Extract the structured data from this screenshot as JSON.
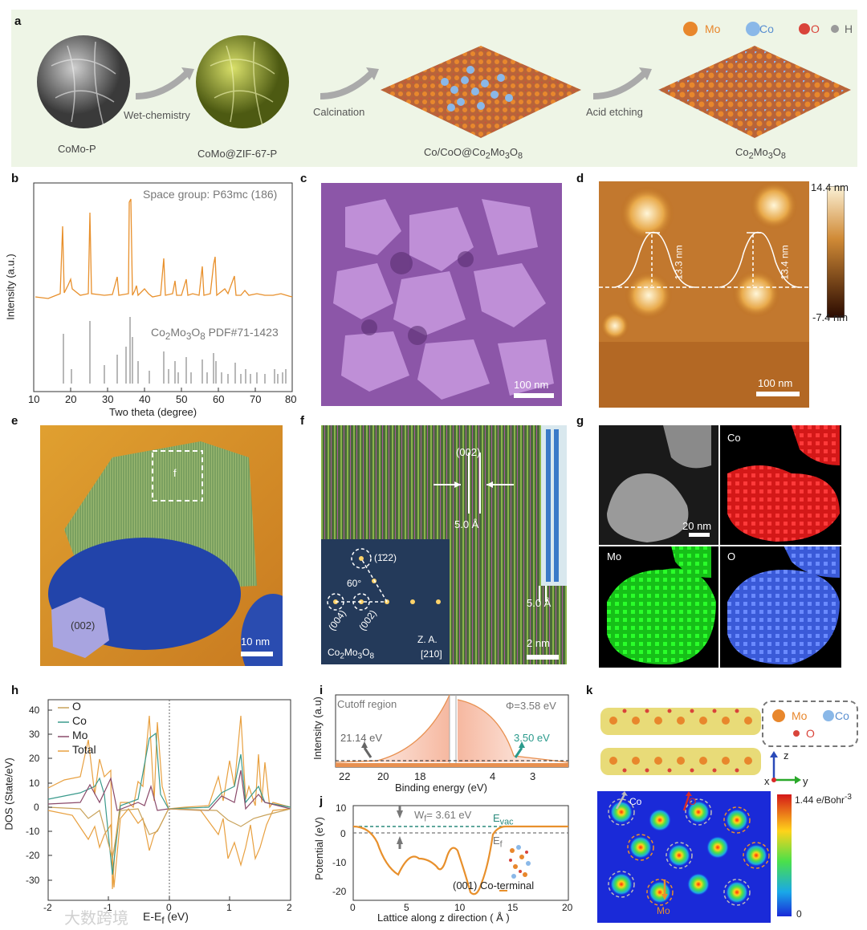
{
  "panels": {
    "a": {
      "label": "a",
      "legend": [
        {
          "symbol": "Mo",
          "color": "#e8872c"
        },
        {
          "symbol": "Co",
          "color": "#8ab8e8"
        },
        {
          "symbol": "O",
          "color": "#d9443a"
        },
        {
          "symbol": "H",
          "color": "#9a9a9a"
        }
      ],
      "steps": [
        "Wet-chemistry",
        "Calcination",
        "Acid etching"
      ],
      "stages": [
        "CoMo-P",
        "CoMo@ZIF-67-P",
        "Co/CoO@Co",
        "Co"
      ],
      "stage3_parts": [
        "Co/CoO@Co",
        "2",
        "Mo",
        "3",
        "O",
        "8"
      ],
      "stage4_parts": [
        "Co",
        "2",
        "Mo",
        "3",
        "O",
        "8"
      ]
    },
    "b": {
      "label": "b",
      "space_group": "Space group: P63mc (186)",
      "pdf_parts": [
        "Co",
        "2",
        "Mo",
        "3",
        "O",
        "8",
        " PDF#71-1423"
      ],
      "ylabel": "Intensity (a.u.)",
      "xlabel": "Two theta (degree)",
      "xticks": [
        "10",
        "20",
        "30",
        "40",
        "50",
        "60",
        "70",
        "80"
      ]
    },
    "c": {
      "label": "c",
      "scalebar": "100 nm"
    },
    "d": {
      "label": "d",
      "heights": [
        "13.3 nm",
        "13.4 nm"
      ],
      "scalebar": "100 nm",
      "cbar_max": "14.4 nm",
      "cbar_min": "-7.4 nm"
    },
    "e": {
      "label": "e",
      "box_label": "f",
      "facet": "(002)",
      "scalebar": "10 nm"
    },
    "f": {
      "label": "f",
      "plane": "(002)",
      "spacing1": "5.0 Å",
      "spacing2": "5.0 Å",
      "angle": "60°",
      "spots": [
        "(1̄22)",
        "(004)",
        "(002)"
      ],
      "za": "Z. A.",
      "za_dir": "[210]",
      "compound_parts": [
        "Co",
        "2",
        "Mo",
        "3",
        "O",
        "8"
      ],
      "scalebar": "2 nm"
    },
    "g": {
      "label": "g",
      "maps": [
        "Co",
        "Mo",
        "O"
      ],
      "scalebar": "20 nm"
    },
    "h": {
      "label": "h",
      "ylabel": "DOS (State/eV)",
      "xlabel": "E-E",
      "xlabel_sub": "f",
      "xlabel_unit": " (eV)",
      "xticks": [
        "-2",
        "-1",
        "0",
        "1",
        "2"
      ],
      "yticks": [
        "40",
        "30",
        "20",
        "10",
        "0",
        "-10",
        "-20",
        "-30"
      ],
      "legend": [
        {
          "name": "O",
          "color": "#c9a25a"
        },
        {
          "name": "Co",
          "color": "#3a9a8c"
        },
        {
          "name": "Mo",
          "color": "#8a4a6a"
        },
        {
          "name": "Total",
          "color": "#e8a040"
        }
      ]
    },
    "i": {
      "label": "i",
      "ylabel": "Intensity (a.u)",
      "xlabel": "Binding energy (eV)",
      "region": "Cutoff region",
      "phi": "Φ=3.58 eV",
      "val1": "21.14 eV",
      "val2": "3.50 eV",
      "xticks": [
        "22",
        "20",
        "18",
        "4",
        "3"
      ]
    },
    "j": {
      "label": "j",
      "ylabel": "Potential (eV)",
      "xlabel": "Lattice along z direction ( Å )",
      "wf": "W",
      "wf_sub": "f",
      "wf_val": "= 3.61 eV",
      "evac": "E",
      "evac_sub": "vac",
      "ef": "E",
      "ef_sub": "f",
      "curve_label": "(001) Co-terminal",
      "xticks": [
        "0",
        "5",
        "10",
        "15",
        "20"
      ],
      "yticks": [
        "10",
        "0",
        "-10",
        "-20"
      ]
    },
    "k": {
      "label": "k",
      "legend": [
        "Mo",
        "Co",
        "O"
      ],
      "axes": [
        "z",
        "x",
        "y"
      ],
      "cbar_max": "1.44 e/Bohr",
      "cbar_max_sup": "-3",
      "cbar_min": "0",
      "arrows": [
        "Co",
        "O",
        "Mo"
      ]
    }
  },
  "watermark": "大数跨境"
}
